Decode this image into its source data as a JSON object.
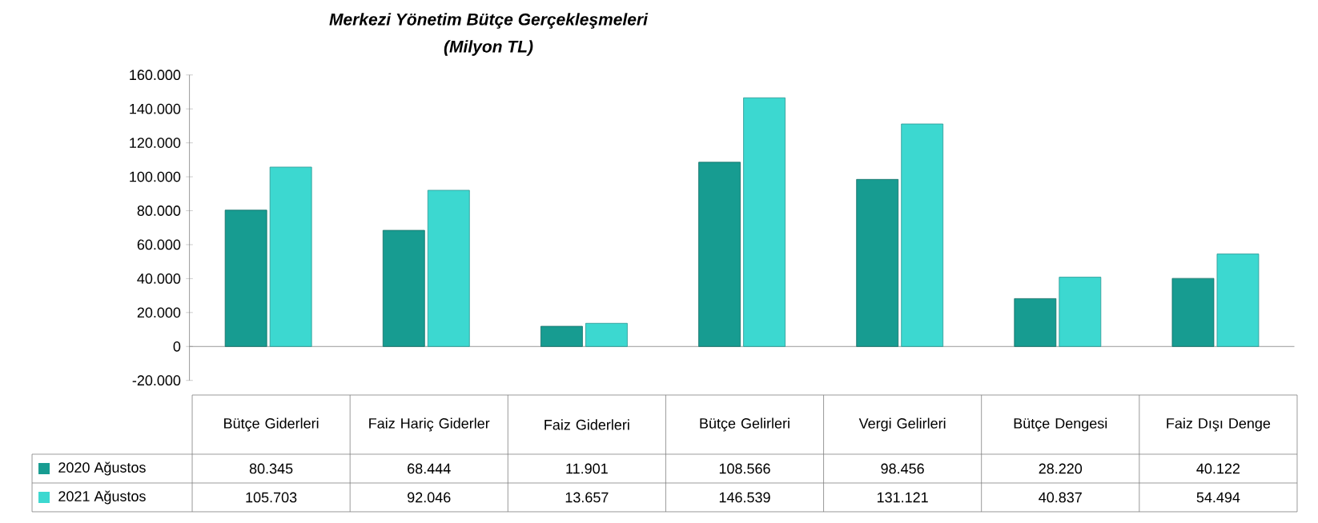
{
  "chart_data": {
    "type": "bar",
    "title": "Merkezi Yönetim Bütçe Gerçekleşmeleri",
    "subtitle": "(Milyon TL)",
    "categories": [
      "Bütçe Giderleri",
      "Faiz Hariç Giderler",
      "Faiz Giderleri",
      "Bütçe Gelirleri",
      "Vergi Gelirleri",
      "Bütçe Dengesi",
      "Faiz Dışı Denge"
    ],
    "series": [
      {
        "name": "2020 Ağustos",
        "color": "#179c91",
        "values": [
          80345,
          68444,
          11901,
          108566,
          98456,
          28220,
          40122
        ],
        "value_labels": [
          "80.345",
          "68.444",
          "11.901",
          "108.566",
          "98.456",
          "28.220",
          "40.122"
        ]
      },
      {
        "name": "2021 Ağustos",
        "color": "#3cd8d0",
        "values": [
          105703,
          92046,
          13657,
          146539,
          131121,
          40837,
          54494
        ],
        "value_labels": [
          "105.703",
          "92.046",
          "13.657",
          "146.539",
          "131.121",
          "40.837",
          "54.494"
        ]
      }
    ],
    "ylim": [
      -20000,
      160000
    ],
    "yticks": [
      {
        "value": -20000,
        "label": "-20.000"
      },
      0,
      {
        "value": 20000,
        "label": "20.000"
      },
      {
        "value": 40000,
        "label": "40.000"
      },
      {
        "value": 60000,
        "label": "60.000"
      },
      {
        "value": 80000,
        "label": "80.000"
      },
      {
        "value": 100000,
        "label": "100.000"
      },
      {
        "value": 120000,
        "label": "120.000"
      },
      {
        "value": 140000,
        "label": "140.000"
      },
      {
        "value": 160000,
        "label": "160.000"
      }
    ],
    "legend": "bottom"
  }
}
